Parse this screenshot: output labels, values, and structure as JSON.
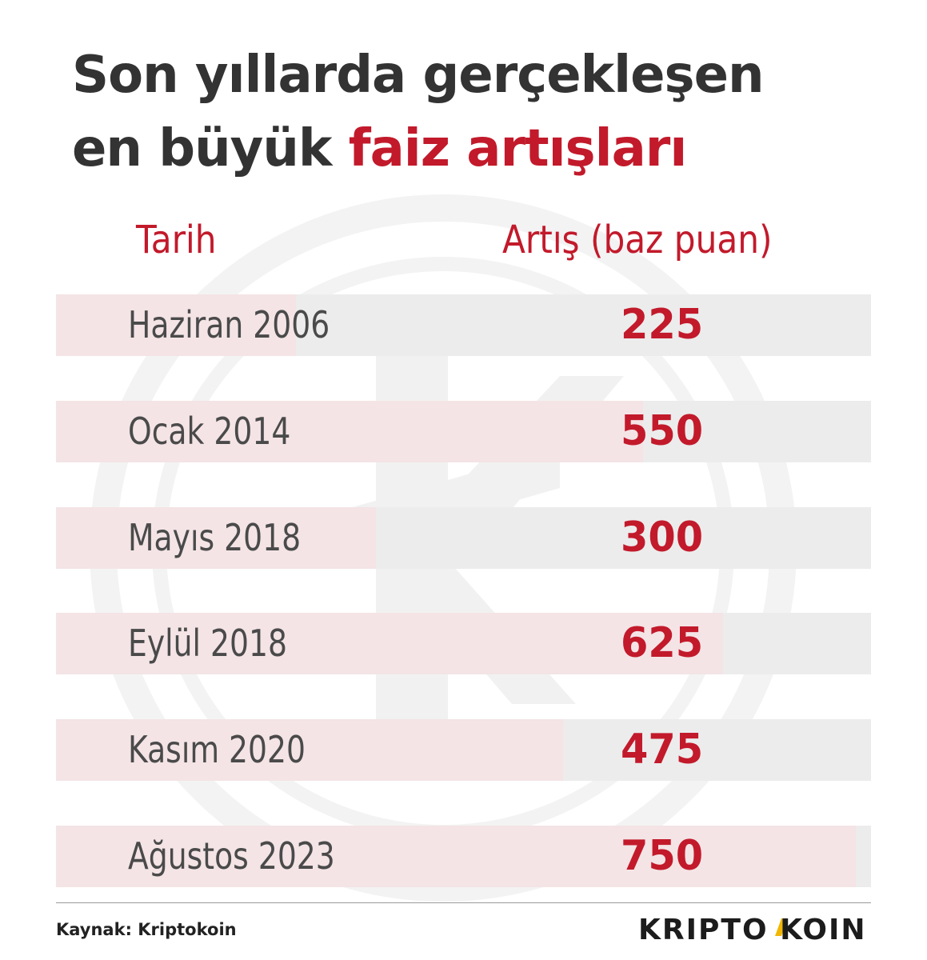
{
  "title": {
    "line1": "Son yıllarda gerçekleşen",
    "line2_prefix": "en büyük ",
    "line2_accent": "faiz artışları"
  },
  "headers": {
    "date": "Tarih",
    "value": "Artış (baz puan)"
  },
  "colors": {
    "accent": "#c21a2b",
    "text": "#333333",
    "row_background": "#ececec",
    "row_fill": "#f4e4e6"
  },
  "chart_data": {
    "type": "bar",
    "categories": [
      "Haziran 2006",
      "Ocak 2014",
      "Mayıs 2018",
      "Eylül 2018",
      "Kasım 2020",
      "Ağustos 2023"
    ],
    "values": [
      225,
      550,
      300,
      625,
      475,
      750
    ],
    "title": "Son yıllarda gerçekleşen en büyük faiz artışları",
    "xlabel": "Tarih",
    "ylabel": "Artış (baz puan)",
    "orientation": "horizontal",
    "grid": false
  },
  "footer": {
    "source": "Kaynak: Kriptokoin",
    "brand_part1": "KRIPTO",
    "brand_part2": "KOIN"
  }
}
